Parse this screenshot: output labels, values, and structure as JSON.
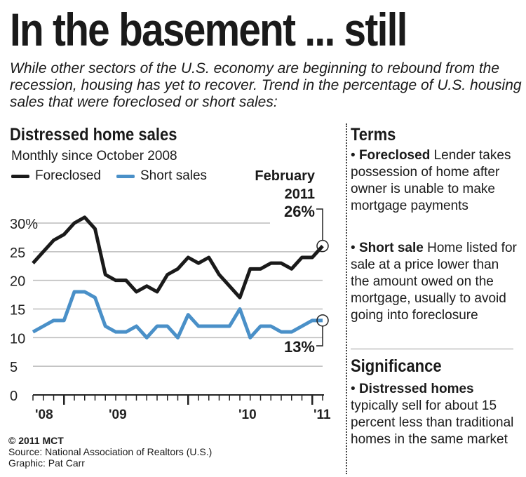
{
  "title": "In the basement ... still",
  "intro": "While other sectors of the U.S. economy are beginning to rebound from the recession, housing has yet to recover. Trend in the percentage of U.S. housing sales that were foreclosed or short sales:",
  "chart_data": {
    "type": "line",
    "title": "Distressed home sales",
    "subtitle": "Monthly since October 2008",
    "x_start": "2008-10",
    "x_end": "2011-02",
    "x_tick_labels": [
      "'08",
      "'09",
      "'10",
      "'11"
    ],
    "y_tick_labels": [
      "0",
      "5",
      "10",
      "15",
      "20",
      "25",
      "30%"
    ],
    "ylim": [
      0,
      30
    ],
    "grid": true,
    "legend": "top-left",
    "series": [
      {
        "name": "Foreclosed",
        "color": "#1a1a1a",
        "values": [
          23,
          25,
          27,
          28,
          30,
          31,
          29,
          21,
          20,
          20,
          18,
          19,
          18,
          21,
          22,
          24,
          23,
          24,
          21,
          19,
          17,
          22,
          22,
          23,
          23,
          22,
          24,
          24,
          26
        ]
      },
      {
        "name": "Short sales",
        "color": "#4a90c8",
        "values": [
          11,
          12,
          13,
          13,
          18,
          18,
          17,
          12,
          11,
          11,
          12,
          10,
          12,
          12,
          10,
          14,
          12,
          12,
          12,
          12,
          15,
          10,
          12,
          12,
          11,
          11,
          12,
          13,
          13
        ]
      }
    ],
    "annotations": {
      "date": "February",
      "year": "2011",
      "foreclosed": "26%",
      "short": "13%"
    }
  },
  "terms": {
    "heading": "Terms",
    "foreclosed_term": "Foreclosed",
    "foreclosed_def": " Lender takes possession of home after owner is unable to make mortgage payments",
    "short_term": "Short sale",
    "short_def": " Home listed for sale at a price lower than the amount owed on the mortgage, usually to avoid going into foreclosure"
  },
  "significance": {
    "heading": "Significance",
    "term": "Distressed homes",
    "def": " typically sell for about 15 percent less than traditional homes in the same market"
  },
  "footer": {
    "copyright": "© 2011 MCT",
    "source": "Source: National Association of Realtors (U.S.)",
    "graphic": "Graphic: Pat Carr"
  }
}
